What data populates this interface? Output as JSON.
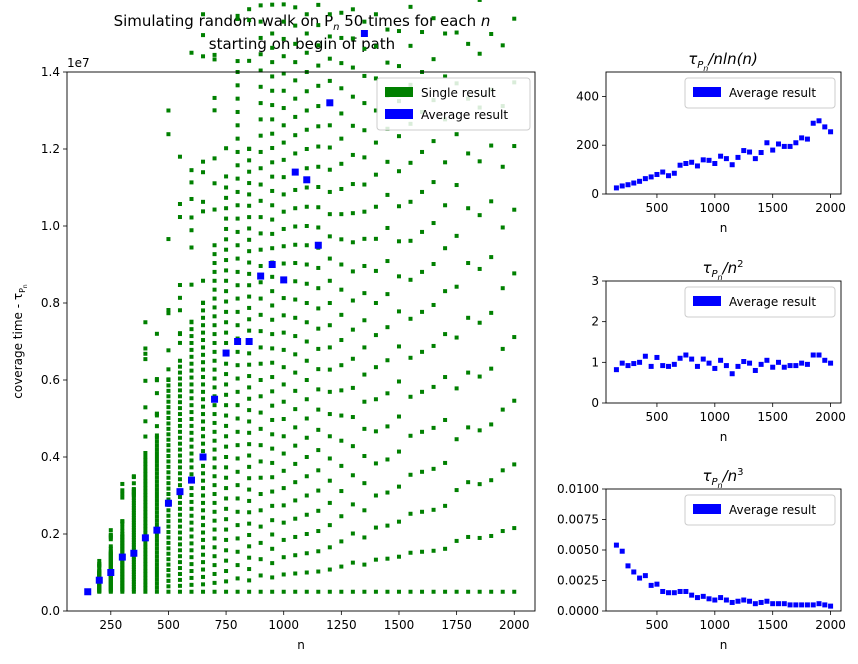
{
  "chart_data": [
    {
      "type": "scatter",
      "title_line1": "Simulating random walk on P",
      "title_sub": "n",
      "title_tail": " 50 times for each ",
      "title_tail_italic": "n",
      "title_line2": "starting on begin of path",
      "xlabel": "n",
      "ylabel_main": "coverage time - τ",
      "ylabel_sub": "P",
      "ylabel_subsub": "n",
      "offset_text": "1e7",
      "xlim": [
        60,
        2090
      ],
      "ylim": [
        0,
        1.4
      ],
      "x_ticks": [
        250,
        500,
        750,
        1000,
        1250,
        1500,
        1750,
        2000
      ],
      "y_ticks": [
        0.0,
        0.2,
        0.4,
        0.6,
        0.8,
        1.0,
        1.2,
        1.4
      ],
      "y_tick_labels": [
        "0.0",
        "0.2",
        "0.4",
        "0.6",
        "0.8",
        "1.0",
        "1.2",
        "1.4"
      ],
      "legend": [
        {
          "label": "Single result",
          "color": "#008000"
        },
        {
          "label": "Average result",
          "color": "#0000ff"
        }
      ],
      "n_values": [
        150,
        200,
        250,
        300,
        350,
        400,
        450,
        500,
        550,
        600,
        650,
        700,
        750,
        800,
        850,
        900,
        950,
        1000,
        1050,
        1100,
        1150,
        1200,
        1250,
        1300,
        1350,
        1400,
        1450,
        1500,
        1550,
        1600,
        1650,
        1700,
        1750,
        1800,
        1850,
        1900,
        1950,
        2000
      ],
      "single_max": [
        0.05,
        0.13,
        0.21,
        0.33,
        0.35,
        0.75,
        0.72,
        1.3,
        1.18,
        1.45,
        1.55,
        1.65,
        2.55,
        2.8,
        2.6,
        3.6,
        3.45,
        3.1,
        4.98,
        7.82,
        4.7,
        4.8,
        4.9,
        5.0,
        5.8,
        7.95,
        6.95,
        5.8,
        10.42,
        6.55,
        7.3,
        10.6,
        9.8,
        9.05,
        12.7,
        12.1,
        12.65,
        11.9
      ],
      "single_dense_max": [
        0.05,
        0.1,
        0.15,
        0.2,
        0.3,
        0.4,
        0.45,
        0.6,
        0.65,
        0.75,
        0.8,
        0.95,
        1.1,
        1.4,
        1.2,
        1.7,
        1.5,
        1.8,
        1.9,
        2.0,
        2.1,
        2.3,
        2.6,
        3.0,
        2.8,
        3.3,
        3.4,
        3.6,
        4.0,
        4.1,
        4.2,
        4.4,
        5.2,
        5.6,
        5.5,
        5.7,
        6.2,
        6.5
      ],
      "average": [
        0.05,
        0.08,
        0.1,
        0.14,
        0.15,
        0.19,
        0.21,
        0.28,
        0.31,
        0.34,
        0.4,
        0.55,
        0.67,
        0.7,
        0.7,
        0.87,
        0.9,
        0.86,
        1.14,
        1.12,
        0.95,
        1.32,
        1.62,
        1.63,
        1.5,
        1.86,
        2.24,
        1.98,
        2.42,
        2.3,
        2.45,
        2.64,
        3.08,
        3.12,
        4.03,
        4.27,
        4.06,
        3.9
      ]
    },
    {
      "type": "scatter",
      "title_main": "τ",
      "title_sub": "P",
      "title_subsub": "n",
      "title_tail": "/nln(n)",
      "xlabel": "n",
      "xlim": [
        60,
        2090
      ],
      "ylim": [
        0,
        500
      ],
      "x_ticks": [
        500,
        1000,
        1500,
        2000
      ],
      "y_ticks": [
        0,
        200,
        400
      ],
      "y_tick_labels": [
        "0",
        "200",
        "400"
      ],
      "legend": [
        {
          "label": "Average result",
          "color": "#0000ff"
        }
      ],
      "n_values": [
        150,
        200,
        250,
        300,
        350,
        400,
        450,
        500,
        550,
        600,
        650,
        700,
        750,
        800,
        850,
        900,
        950,
        1000,
        1050,
        1100,
        1150,
        1200,
        1250,
        1300,
        1350,
        1400,
        1450,
        1500,
        1550,
        1600,
        1650,
        1700,
        1750,
        1800,
        1850,
        1900,
        1950,
        2000
      ],
      "values": [
        25,
        33,
        38,
        45,
        52,
        63,
        70,
        80,
        90,
        75,
        85,
        118,
        125,
        130,
        115,
        140,
        138,
        125,
        155,
        145,
        120,
        150,
        178,
        172,
        145,
        170,
        210,
        180,
        205,
        195,
        195,
        210,
        230,
        225,
        290,
        300,
        275,
        255
      ]
    },
    {
      "type": "scatter",
      "title_main": "τ",
      "title_sub": "P",
      "title_subsub": "n",
      "title_tail": "/n",
      "title_sup": "2",
      "xlabel": "n",
      "xlim": [
        60,
        2090
      ],
      "ylim": [
        0,
        3
      ],
      "x_ticks": [
        500,
        1000,
        1500,
        2000
      ],
      "y_ticks": [
        0,
        1,
        2,
        3
      ],
      "y_tick_labels": [
        "0",
        "1",
        "2",
        "3"
      ],
      "legend": [
        {
          "label": "Average result",
          "color": "#0000ff"
        }
      ],
      "n_values": [
        150,
        200,
        250,
        300,
        350,
        400,
        450,
        500,
        550,
        600,
        650,
        700,
        750,
        800,
        850,
        900,
        950,
        1000,
        1050,
        1100,
        1150,
        1200,
        1250,
        1300,
        1350,
        1400,
        1450,
        1500,
        1550,
        1600,
        1650,
        1700,
        1750,
        1800,
        1850,
        1900,
        1950,
        2000
      ],
      "values": [
        0.82,
        0.98,
        0.92,
        0.97,
        1.0,
        1.15,
        0.9,
        1.12,
        0.92,
        0.9,
        0.95,
        1.1,
        1.18,
        1.08,
        0.9,
        1.08,
        0.98,
        0.85,
        1.05,
        0.92,
        0.72,
        0.9,
        1.02,
        0.98,
        0.8,
        0.95,
        1.05,
        0.88,
        1.0,
        0.88,
        0.92,
        0.92,
        0.98,
        0.95,
        1.18,
        1.18,
        1.05,
        0.98
      ]
    },
    {
      "type": "scatter",
      "title_main": "τ",
      "title_sub": "P",
      "title_subsub": "n",
      "title_tail": "/n",
      "title_sup": "3",
      "xlabel": "n",
      "xlim": [
        60,
        2090
      ],
      "ylim": [
        0,
        0.01
      ],
      "x_ticks": [
        500,
        1000,
        1500,
        2000
      ],
      "y_ticks": [
        0.0,
        0.0025,
        0.005,
        0.0075,
        0.01
      ],
      "y_tick_labels": [
        "0.0000",
        "0.0025",
        "0.0050",
        "0.0075",
        "0.0100"
      ],
      "legend": [
        {
          "label": "Average result",
          "color": "#0000ff"
        }
      ],
      "n_values": [
        150,
        200,
        250,
        300,
        350,
        400,
        450,
        500,
        550,
        600,
        650,
        700,
        750,
        800,
        850,
        900,
        950,
        1000,
        1050,
        1100,
        1150,
        1200,
        1250,
        1300,
        1350,
        1400,
        1450,
        1500,
        1550,
        1600,
        1650,
        1700,
        1750,
        1800,
        1850,
        1900,
        1950,
        2000
      ],
      "values": [
        0.0054,
        0.0049,
        0.0037,
        0.0032,
        0.0027,
        0.0029,
        0.0021,
        0.0022,
        0.0016,
        0.0015,
        0.0015,
        0.0016,
        0.0016,
        0.0013,
        0.0011,
        0.0012,
        0.001,
        0.0009,
        0.0011,
        0.0009,
        0.0007,
        0.0008,
        0.0009,
        0.0008,
        0.0006,
        0.0007,
        0.0008,
        0.0006,
        0.0006,
        0.0006,
        0.0005,
        0.0005,
        0.0005,
        0.0005,
        0.0005,
        0.0006,
        0.0005,
        0.0004
      ]
    }
  ]
}
